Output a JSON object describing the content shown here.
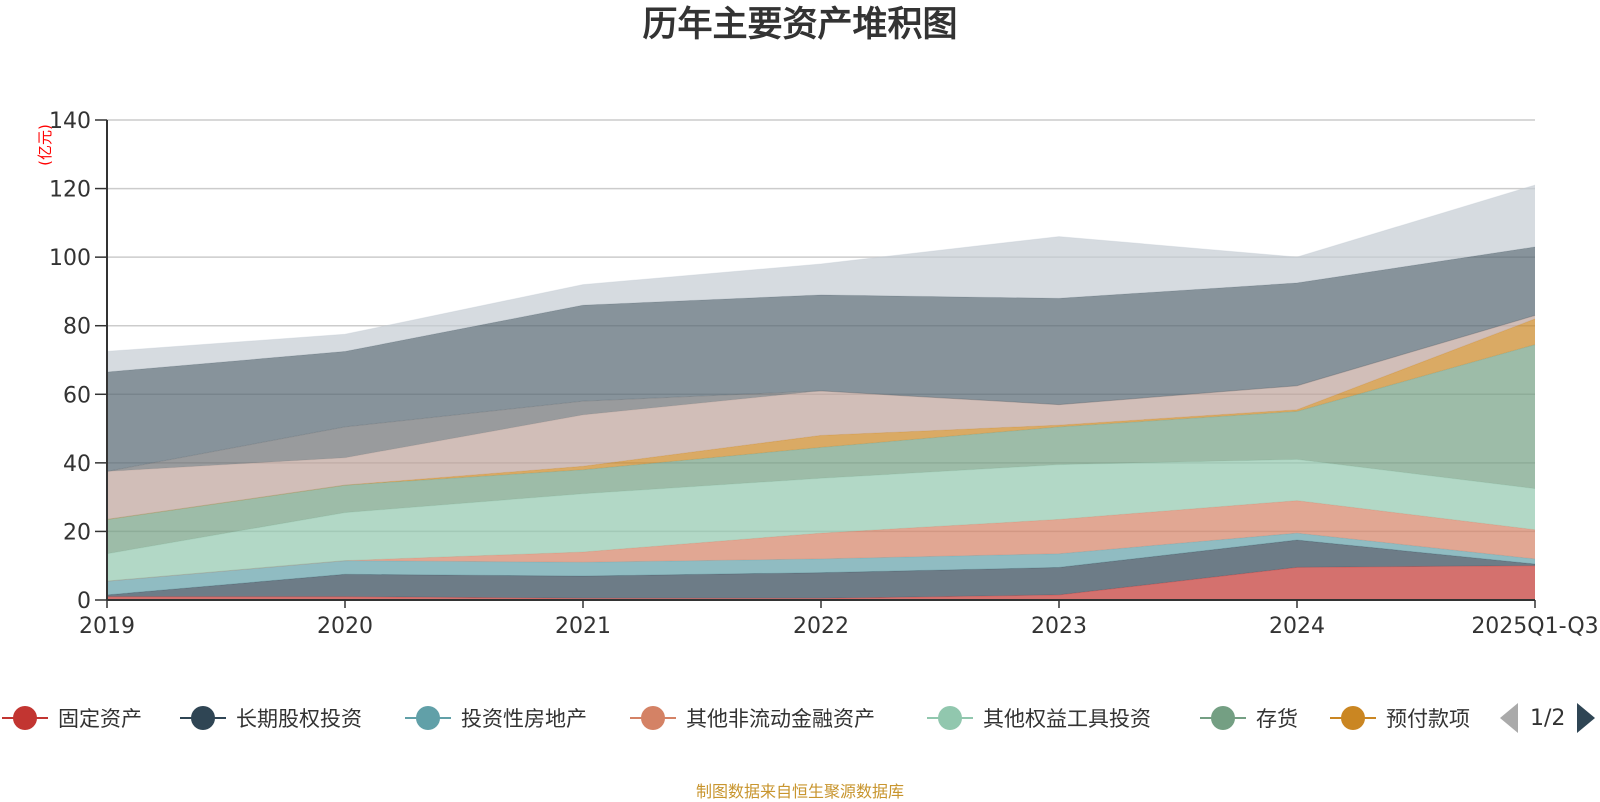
{
  "chart_data": {
    "type": "area",
    "stacked": true,
    "title": "历年主要资产堆积图",
    "unit": "(亿元)",
    "categories": [
      "2019",
      "2020",
      "2021",
      "2022",
      "2023",
      "2024",
      "2025Q1-Q3"
    ],
    "ylim": [
      0,
      140
    ],
    "yticks": [
      0,
      20,
      40,
      60,
      80,
      100,
      120,
      140
    ],
    "series": [
      {
        "name": "固定资产",
        "color": "#c23531",
        "values": [
          1,
          1,
          0.5,
          0.5,
          1.5,
          9.5,
          10
        ]
      },
      {
        "name": "长期股权投资",
        "color": "#2f4554",
        "values": [
          0.5,
          6.5,
          6.5,
          7.5,
          8,
          8,
          0.5
        ]
      },
      {
        "name": "投资性房地产",
        "color": "#61a0a8",
        "values": [
          4,
          4,
          4,
          4,
          4,
          2,
          1.5
        ]
      },
      {
        "name": "其他非流动金融资产",
        "color": "#d48265",
        "values": [
          0,
          0,
          3,
          7.5,
          10,
          9.5,
          8.5
        ]
      },
      {
        "name": "其他权益工具投资",
        "color": "#91c7ae",
        "values": [
          8,
          14,
          17,
          16,
          16,
          12,
          12
        ]
      },
      {
        "name": "存货",
        "color": "#749f83",
        "values": [
          10,
          8,
          7,
          9,
          11,
          14,
          42
        ]
      },
      {
        "name": "预付款项",
        "color": "#ca8622",
        "values": [
          0,
          0,
          1,
          3.5,
          0.5,
          0.5,
          7.5
        ]
      },
      {
        "name": "",
        "color": "#bda29a",
        "values": [
          14,
          8,
          15,
          13,
          6,
          7,
          1
        ]
      },
      {
        "name": "",
        "color": "#6e7074",
        "values": [
          0,
          9,
          4,
          0,
          0,
          0,
          0
        ]
      },
      {
        "name": "",
        "color": "#546570",
        "values": [
          29,
          22,
          28,
          28,
          31,
          30,
          20
        ]
      },
      {
        "name": "",
        "color": "#c4ccd3",
        "values": [
          6,
          5,
          6,
          9,
          18,
          7.5,
          18
        ]
      }
    ]
  },
  "legend": {
    "items": [
      {
        "label": "固定资产",
        "color": "#c23531"
      },
      {
        "label": "长期股权投资",
        "color": "#2f4554"
      },
      {
        "label": "投资性房地产",
        "color": "#61a0a8"
      },
      {
        "label": "其他非流动金融资产",
        "color": "#d48265"
      },
      {
        "label": "其他权益工具投资",
        "color": "#91c7ae"
      },
      {
        "label": "存货",
        "color": "#749f83"
      },
      {
        "label": "预付款项",
        "color": "#ca8622"
      }
    ],
    "page": "1/2"
  },
  "source": "制图数据来自恒生聚源数据库"
}
